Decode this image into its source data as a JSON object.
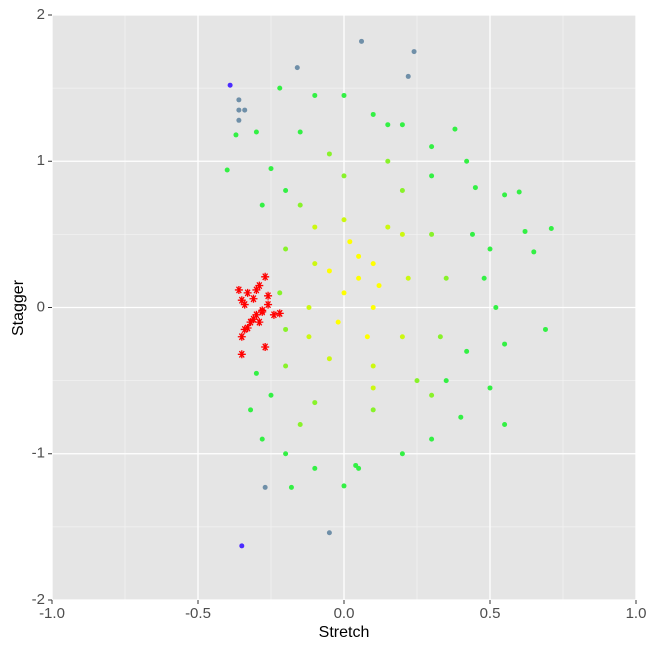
{
  "chart_data": {
    "type": "scatter",
    "xlabel": "Stretch",
    "ylabel": "Stagger",
    "xlim": [
      -1,
      1
    ],
    "ylim": [
      -2,
      2
    ],
    "xticks": [
      {
        "value": -1,
        "label": "-1.0"
      },
      -0.5,
      {
        "value": 0,
        "label": "0.0"
      },
      0.5,
      {
        "value": 1,
        "label": "1.0"
      }
    ],
    "yticks": [
      -2,
      -1,
      0,
      1,
      2
    ],
    "xminor": [
      -0.75,
      -0.25,
      0.25,
      0.75
    ],
    "yminor": [
      -1.5,
      -0.5,
      0.5,
      1.5
    ],
    "grid": true,
    "background": "#e5e5e5",
    "series": [
      {
        "color": "#4b2bff",
        "marker": "circle",
        "x": [
          -0.39,
          -0.35
        ],
        "y": [
          1.52,
          -1.63
        ]
      },
      {
        "color": "#6f8fa8",
        "marker": "circle",
        "x": [
          0.06,
          0.24,
          -0.16,
          -0.36,
          -0.36,
          -0.34,
          -0.36,
          -0.27,
          -0.05,
          0.22
        ],
        "y": [
          1.82,
          1.75,
          1.64,
          1.42,
          1.35,
          1.35,
          1.28,
          -1.23,
          -1.54,
          1.58
        ]
      },
      {
        "color": "#33f044",
        "marker": "circle",
        "x": [
          -0.4,
          -0.37,
          -0.3,
          -0.22,
          -0.1,
          0.0,
          0.1,
          0.2,
          0.3,
          0.38,
          0.42,
          0.45,
          0.55,
          0.6,
          0.62,
          0.71,
          0.65,
          0.5,
          0.48,
          0.52,
          0.55,
          0.69,
          0.5,
          0.55,
          0.4,
          0.3,
          0.2,
          0.05,
          -0.1,
          -0.2,
          -0.28,
          -0.32,
          -0.3,
          -0.18,
          0.0,
          0.04,
          -0.28,
          -0.25,
          -0.15,
          0.15,
          0.35,
          0.42,
          0.44,
          -0.25,
          0.3,
          -0.2
        ],
        "y": [
          0.94,
          1.18,
          1.2,
          1.5,
          1.45,
          1.45,
          1.32,
          1.25,
          1.1,
          1.22,
          1.0,
          0.82,
          0.77,
          0.79,
          0.52,
          0.54,
          0.38,
          0.4,
          0.2,
          0.0,
          -0.25,
          -0.15,
          -0.55,
          -0.8,
          -0.75,
          -0.9,
          -1.0,
          -1.1,
          -1.1,
          -1.0,
          -0.9,
          -0.7,
          -0.45,
          -1.23,
          -1.22,
          -1.08,
          0.7,
          0.95,
          1.2,
          1.25,
          -0.5,
          -0.3,
          0.5,
          -0.6,
          0.9,
          0.8
        ]
      },
      {
        "color": "#88f22a",
        "marker": "circle",
        "x": [
          -0.2,
          -0.15,
          0.0,
          0.2,
          0.3,
          0.35,
          0.33,
          0.25,
          0.1,
          -0.1,
          -0.2,
          -0.22,
          -0.2,
          0.15,
          -0.05,
          0.3,
          -0.15
        ],
        "y": [
          0.4,
          0.7,
          0.9,
          0.8,
          0.5,
          0.2,
          -0.2,
          -0.5,
          -0.7,
          -0.65,
          -0.4,
          0.1,
          -0.15,
          1.0,
          1.05,
          -0.6,
          -0.8
        ]
      },
      {
        "color": "#ccf810",
        "marker": "circle",
        "x": [
          -0.1,
          0.0,
          0.15,
          0.22,
          0.2,
          0.1,
          -0.05,
          -0.12,
          -0.1,
          0.2,
          0.1,
          -0.12
        ],
        "y": [
          0.3,
          0.6,
          0.55,
          0.2,
          -0.2,
          -0.4,
          -0.35,
          0.0,
          0.55,
          0.5,
          -0.55,
          -0.2
        ]
      },
      {
        "color": "#ffff00",
        "marker": "circle",
        "x": [
          0.05,
          0.0,
          0.1,
          0.05,
          -0.02,
          0.1,
          0.02,
          0.08,
          -0.05,
          0.12
        ],
        "y": [
          0.2,
          0.1,
          0.0,
          0.35,
          -0.1,
          0.3,
          0.45,
          -0.2,
          0.25,
          0.15
        ]
      },
      {
        "color": "#ff0000",
        "marker": "asterisk",
        "x": [
          -0.36,
          -0.35,
          -0.33,
          -0.31,
          -0.29,
          -0.27,
          -0.26,
          -0.28,
          -0.3,
          -0.32,
          -0.34,
          -0.35,
          -0.35,
          -0.33,
          -0.31,
          -0.29,
          -0.28,
          -0.26,
          -0.24,
          -0.22,
          -0.27,
          -0.34,
          -0.3
        ],
        "y": [
          0.12,
          0.05,
          0.1,
          0.06,
          0.15,
          0.21,
          0.08,
          -0.02,
          -0.05,
          -0.1,
          -0.15,
          -0.2,
          -0.32,
          -0.14,
          -0.08,
          -0.1,
          -0.03,
          0.02,
          -0.05,
          -0.04,
          -0.27,
          0.02,
          0.12
        ]
      }
    ]
  }
}
